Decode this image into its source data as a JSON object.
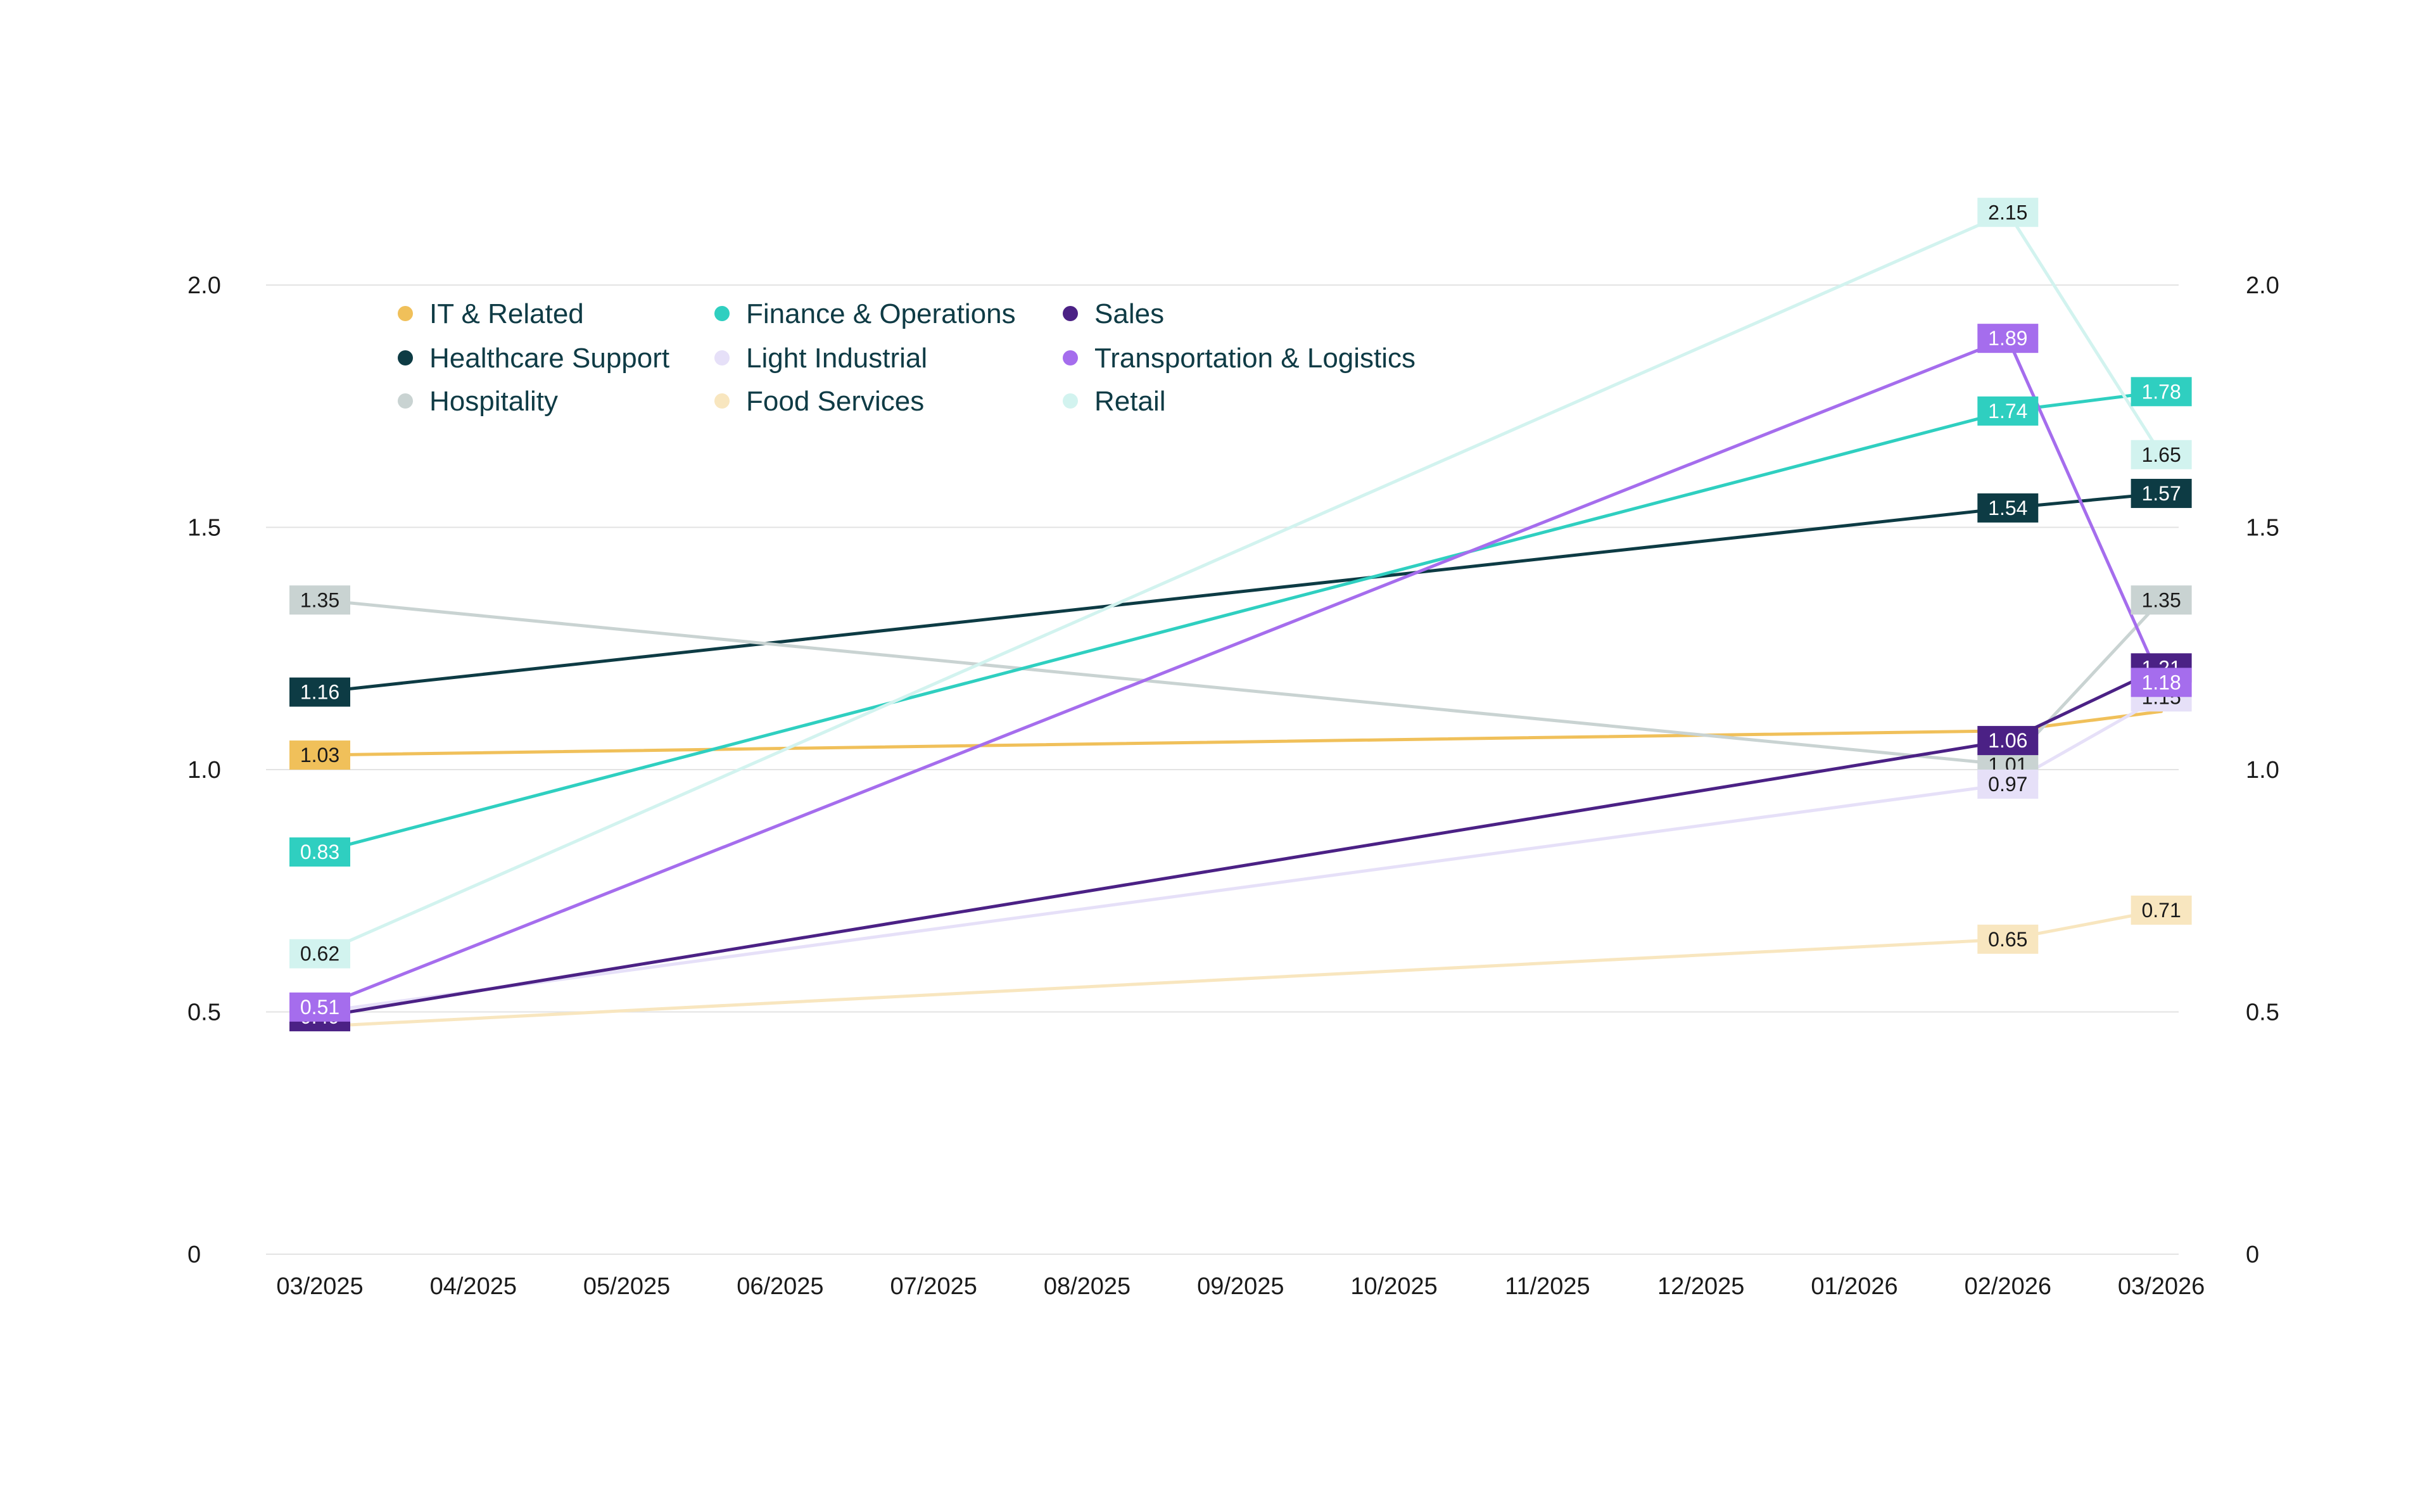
{
  "chart_data": {
    "type": "line",
    "title": "",
    "xlabel": "",
    "ylabel": "",
    "ylim": [
      0,
      2.0
    ],
    "y_ticks": [
      "0",
      "0.5",
      "1.0",
      "1.5",
      "2.0"
    ],
    "y_tick_values": [
      0,
      0.5,
      1.0,
      1.5,
      2.0
    ],
    "grid": true,
    "legend_position": "top-left",
    "x_ticks": [
      "03/2025",
      "04/2025",
      "05/2025",
      "06/2025",
      "07/2025",
      "08/2025",
      "09/2025",
      "10/2025",
      "11/2025",
      "12/2025",
      "01/2026",
      "02/2026",
      "03/2026"
    ],
    "series": [
      {
        "name": "IT & Related",
        "color": "#f0c05a",
        "label_text_color": "#1a1a1a",
        "points": [
          {
            "x": "03/2025",
            "y": 1.03,
            "label": "1.03"
          },
          {
            "x": "02/2026",
            "y": 1.08,
            "label": ""
          },
          {
            "x": "03/2026",
            "y": 1.12,
            "label": ""
          }
        ]
      },
      {
        "name": "Healthcare Support",
        "color": "#0d3b44",
        "label_text_color": "#ffffff",
        "points": [
          {
            "x": "03/2025",
            "y": 1.16,
            "label": "1.16"
          },
          {
            "x": "02/2026",
            "y": 1.54,
            "label": "1.54"
          },
          {
            "x": "03/2026",
            "y": 1.57,
            "label": "1.57"
          }
        ]
      },
      {
        "name": "Hospitality",
        "color": "#c9d3d2",
        "label_text_color": "#1a1a1a",
        "points": [
          {
            "x": "03/2025",
            "y": 1.35,
            "label": "1.35"
          },
          {
            "x": "02/2026",
            "y": 1.01,
            "label": "1.01"
          },
          {
            "x": "03/2026",
            "y": 1.35,
            "label": "1.35"
          }
        ]
      },
      {
        "name": "Finance & Operations",
        "color": "#2fcfc0",
        "label_text_color": "#ffffff",
        "points": [
          {
            "x": "03/2025",
            "y": 0.83,
            "label": "0.83"
          },
          {
            "x": "02/2026",
            "y": 1.74,
            "label": "1.74"
          },
          {
            "x": "03/2026",
            "y": 1.78,
            "label": "1.78"
          }
        ]
      },
      {
        "name": "Light Industrial",
        "color": "#e6e0f8",
        "label_text_color": "#1a1a1a",
        "points": [
          {
            "x": "03/2025",
            "y": 0.5,
            "label": ""
          },
          {
            "x": "02/2026",
            "y": 0.97,
            "label": "0.97"
          },
          {
            "x": "03/2026",
            "y": 1.15,
            "label": "1.15"
          }
        ]
      },
      {
        "name": "Food Services",
        "color": "#f8e6bf",
        "label_text_color": "#1a1a1a",
        "points": [
          {
            "x": "03/2025",
            "y": 0.47,
            "label": ""
          },
          {
            "x": "02/2026",
            "y": 0.65,
            "label": "0.65"
          },
          {
            "x": "03/2026",
            "y": 0.71,
            "label": "0.71"
          }
        ]
      },
      {
        "name": "Sales",
        "color": "#4b2185",
        "label_text_color": "#ffffff",
        "points": [
          {
            "x": "03/2025",
            "y": 0.49,
            "label": "0.49"
          },
          {
            "x": "02/2026",
            "y": 1.06,
            "label": "1.06"
          },
          {
            "x": "03/2026",
            "y": 1.21,
            "label": "1.21"
          }
        ]
      },
      {
        "name": "Transportation & Logistics",
        "color": "#a56ded",
        "label_text_color": "#ffffff",
        "points": [
          {
            "x": "03/2025",
            "y": 0.51,
            "label": "0.51"
          },
          {
            "x": "02/2026",
            "y": 1.89,
            "label": "1.89"
          },
          {
            "x": "03/2026",
            "y": 1.18,
            "label": "1.18"
          }
        ]
      },
      {
        "name": "Retail",
        "color": "#d2f3ef",
        "label_text_color": "#1a1a1a",
        "points": [
          {
            "x": "03/2025",
            "y": 0.62,
            "label": "0.62"
          },
          {
            "x": "02/2026",
            "y": 2.15,
            "label": "2.15"
          },
          {
            "x": "03/2026",
            "y": 1.65,
            "label": "1.65"
          }
        ]
      }
    ]
  }
}
